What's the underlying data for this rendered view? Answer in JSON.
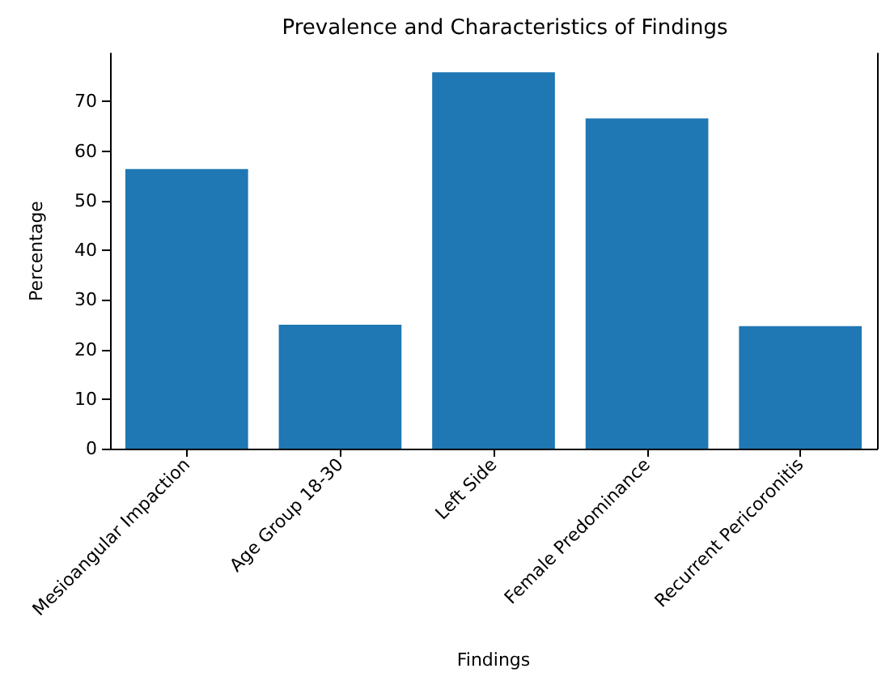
{
  "chart_data": {
    "type": "bar",
    "title": "Prevalence and Characteristics of Findings",
    "xlabel": "Findings",
    "ylabel": "Percentage",
    "categories": [
      "Mesioangular Impaction",
      "Age Group 18-30",
      "Left Side",
      "Female Predominance",
      "Recurrent Pericoronitis"
    ],
    "values": [
      56.4,
      25,
      75.9,
      66.6,
      24.7
    ],
    "color": "#1f77b4",
    "ylim": [
      0,
      79.7
    ],
    "yticks": [
      0,
      10,
      20,
      30,
      40,
      50,
      60,
      70
    ],
    "grid": false
  }
}
